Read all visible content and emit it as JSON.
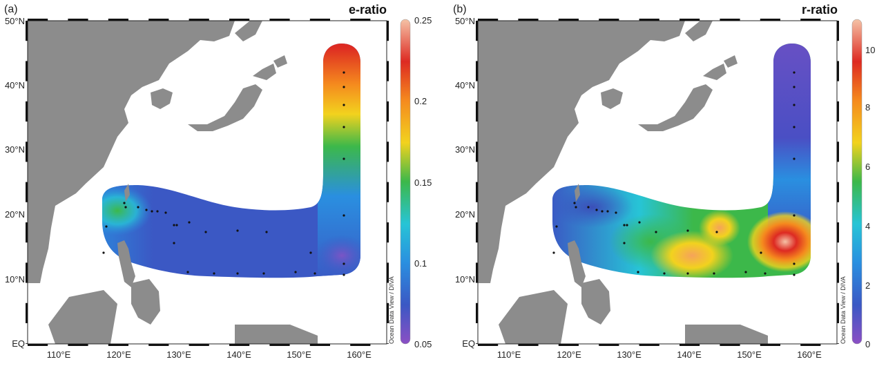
{
  "panels": [
    {
      "tag": "(a)",
      "variable": "e-ratio",
      "colorbar_ticks": [
        "0.25",
        "0.2",
        "0.15",
        "0.1",
        "0.05"
      ],
      "credit": "Ocean Data View / DIVA"
    },
    {
      "tag": "(b)",
      "variable": "r-ratio",
      "colorbar_ticks": [
        "10",
        "8",
        "6",
        "4",
        "2",
        "0"
      ],
      "credit": "Ocean Data View / DIVA"
    }
  ],
  "lat_labels": [
    "50°N",
    "40°N",
    "30°N",
    "20°N",
    "10°N",
    "EQ"
  ],
  "lon_labels": [
    "110°E",
    "120°E",
    "130°E",
    "140°E",
    "150°E",
    "160°E"
  ],
  "colors": {
    "land": "#8c8c8c",
    "ocean": "#ffffff",
    "colormap": [
      "#8b4fc4",
      "#3b58c4",
      "#2a8fe0",
      "#27c4d6",
      "#3cb84a",
      "#f2d21e",
      "#f58a1e",
      "#dd2a22",
      "#f5c2a6"
    ]
  }
}
